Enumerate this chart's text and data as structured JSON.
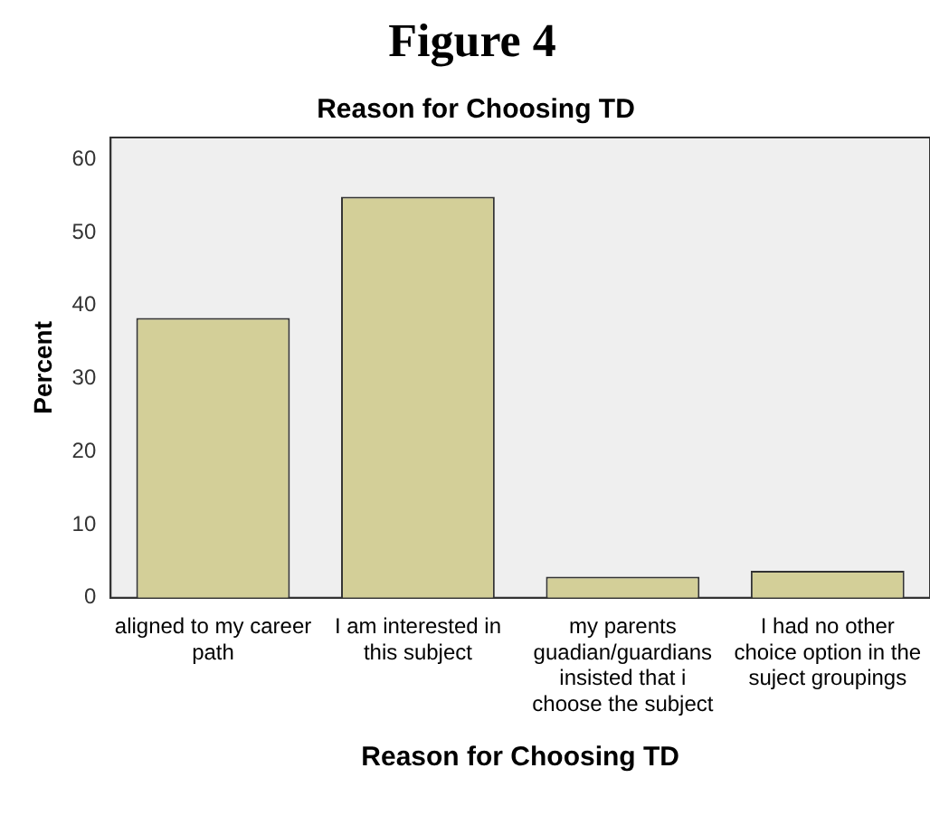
{
  "chart_data": {
    "type": "bar",
    "title": "Figure 4",
    "subtitle": "Reason for Choosing TD",
    "xlabel": "Reason for Choosing TD",
    "ylabel": "Percent",
    "categories": [
      "aligned to my career path",
      "I am interested in this subject",
      "my parents guadian/guardians insisted that i choose the subject",
      "I had no other choice option in the suject groupings"
    ],
    "values": [
      38.3,
      54.9,
      2.9,
      3.7
    ],
    "color": "#d3cf98",
    "ylim": [
      0,
      63
    ],
    "yticks": [
      0,
      10,
      20,
      30,
      40,
      50,
      60
    ],
    "grid": false,
    "legend": false
  }
}
